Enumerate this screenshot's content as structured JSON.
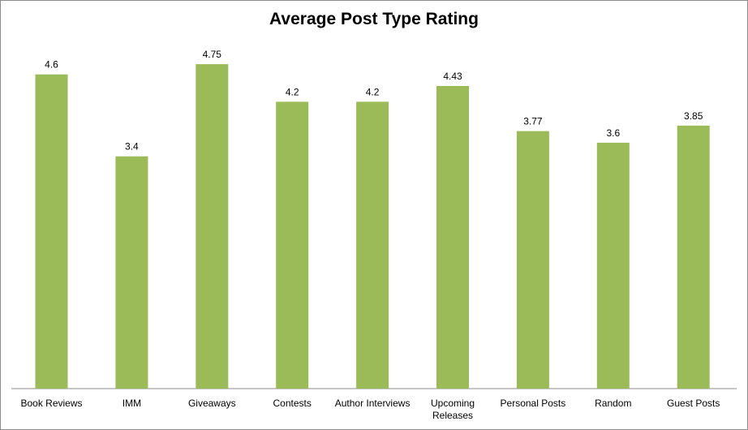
{
  "chart_data": {
    "type": "bar",
    "title": "Average Post Type Rating",
    "categories": [
      "Book Reviews",
      "IMM",
      "Giveaways",
      "Contests",
      "Author Interviews",
      "Upcoming Releases",
      "Personal Posts",
      "Random",
      "Guest Posts"
    ],
    "category_lines": [
      [
        "Book Reviews"
      ],
      [
        "IMM"
      ],
      [
        "Giveaways"
      ],
      [
        "Contests"
      ],
      [
        "Author Interviews"
      ],
      [
        "Upcoming",
        "Releases"
      ],
      [
        "Personal Posts"
      ],
      [
        "Random"
      ],
      [
        "Guest Posts"
      ]
    ],
    "values": [
      4.6,
      3.4,
      4.75,
      4.2,
      4.2,
      4.43,
      3.77,
      3.6,
      3.85
    ],
    "value_labels": [
      "4.6",
      "3.4",
      "4.75",
      "4.2",
      "4.2",
      "4.43",
      "3.77",
      "3.6",
      "3.85"
    ],
    "ylim": [
      0,
      5
    ],
    "grid": false,
    "legend": "none",
    "bar_color": "#9bbb59"
  }
}
